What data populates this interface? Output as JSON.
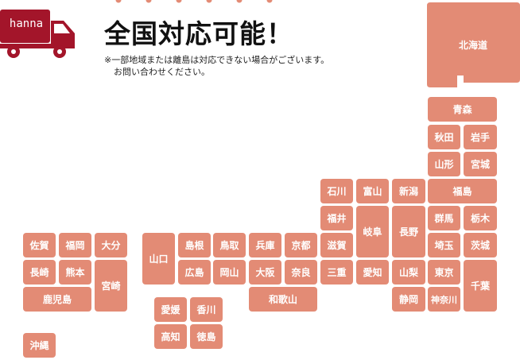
{
  "brand": {
    "name": "hanna",
    "color": "#a3152a"
  },
  "header": {
    "title": "全国対応可能！",
    "note_line1": "※一部地域または離島は対応できない場合がございます。",
    "note_line2": "お問い合わせください。"
  },
  "map": {
    "pref_color": "#e38b75",
    "text_color": "#ffffff",
    "prefectures": {
      "hokkaido": "北海道",
      "aomori": "青森",
      "akita": "秋田",
      "iwate": "岩手",
      "yamagata": "山形",
      "miyagi": "宮城",
      "niigata": "新潟",
      "fukushima": "福島",
      "ishikawa": "石川",
      "toyama": "富山",
      "fukui": "福井",
      "gifu": "岐阜",
      "nagano": "長野",
      "gunma": "群馬",
      "tochigi": "栃木",
      "saitama": "埼玉",
      "ibaraki": "茨城",
      "shiga": "滋賀",
      "kyoto": "京都",
      "hyogo": "兵庫",
      "tottori": "鳥取",
      "shimane": "島根",
      "yamaguchi": "山口",
      "okayama": "岡山",
      "hiroshima": "広島",
      "osaka": "大阪",
      "nara": "奈良",
      "mie": "三重",
      "aichi": "愛知",
      "yamanashi": "山梨",
      "tokyo": "東京",
      "chiba": "千葉",
      "kanagawa": "神奈川",
      "shizuoka": "静岡",
      "wakayama": "和歌山",
      "ehime": "愛媛",
      "kagawa": "香川",
      "kochi": "高知",
      "tokushima": "徳島",
      "saga": "佐賀",
      "fukuoka": "福岡",
      "oita": "大分",
      "nagasaki": "長崎",
      "kumamoto": "熊本",
      "miyazaki": "宮崎",
      "kagoshima": "鹿児島",
      "okinawa": "沖縄"
    }
  }
}
